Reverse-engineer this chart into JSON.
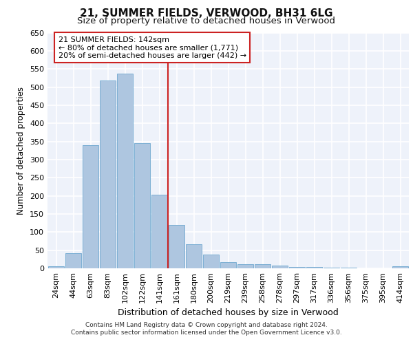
{
  "title": "21, SUMMER FIELDS, VERWOOD, BH31 6LG",
  "subtitle": "Size of property relative to detached houses in Verwood",
  "xlabel": "Distribution of detached houses by size in Verwood",
  "ylabel": "Number of detached properties",
  "categories": [
    "24sqm",
    "44sqm",
    "63sqm",
    "83sqm",
    "102sqm",
    "122sqm",
    "141sqm",
    "161sqm",
    "180sqm",
    "200sqm",
    "219sqm",
    "239sqm",
    "258sqm",
    "278sqm",
    "297sqm",
    "317sqm",
    "336sqm",
    "356sqm",
    "375sqm",
    "395sqm",
    "414sqm"
  ],
  "values": [
    5,
    41,
    340,
    519,
    537,
    346,
    204,
    120,
    66,
    38,
    18,
    11,
    11,
    7,
    4,
    4,
    1,
    1,
    0,
    0,
    5
  ],
  "bar_color": "#aec6e0",
  "bar_edge_color": "#6fa8d0",
  "background_color": "#eef2fa",
  "grid_color": "#ffffff",
  "vline_x_index": 6,
  "vline_color": "#cc2222",
  "annotation_text": "21 SUMMER FIELDS: 142sqm\n← 80% of detached houses are smaller (1,771)\n20% of semi-detached houses are larger (442) →",
  "annotation_box_color": "#ffffff",
  "annotation_box_edge_color": "#cc2222",
  "ylim": [
    0,
    650
  ],
  "yticks": [
    0,
    50,
    100,
    150,
    200,
    250,
    300,
    350,
    400,
    450,
    500,
    550,
    600,
    650
  ],
  "footer_line1": "Contains HM Land Registry data © Crown copyright and database right 2024.",
  "footer_line2": "Contains public sector information licensed under the Open Government Licence v3.0.",
  "title_fontsize": 11,
  "subtitle_fontsize": 9.5,
  "xlabel_fontsize": 9,
  "ylabel_fontsize": 8.5,
  "tick_fontsize": 8,
  "ann_fontsize": 8,
  "footer_fontsize": 6.5
}
